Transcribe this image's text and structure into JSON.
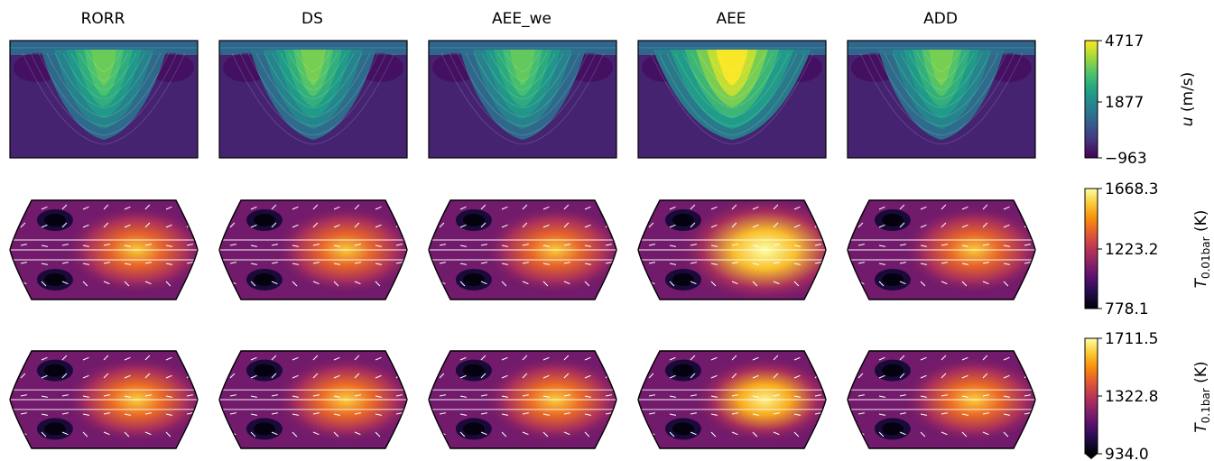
{
  "chart_data": {
    "type": "heatmap",
    "columns": [
      "RORR",
      "DS",
      "AEE_we",
      "AEE",
      "ADD"
    ],
    "rows": [
      {
        "key": "u",
        "projection": "latitude-pressure section",
        "colormap": "viridis",
        "colorbar_ticks": [
          "4717",
          "1877",
          "−963"
        ],
        "vmin": -963,
        "vmax": 4717,
        "label_italic": "u",
        "label_rest": " (m/s)",
        "panel_peak_relative": [
          0.72,
          0.74,
          0.7,
          1.0,
          0.74
        ]
      },
      {
        "key": "T_0.01bar",
        "projection": "map with wind vectors",
        "colormap": "inferno",
        "colorbar_ticks": [
          "1668.3",
          "1223.2",
          "778.1"
        ],
        "vmin": 778.1,
        "vmax": 1668.3,
        "label_T": "T",
        "label_sub": "0.01bar",
        "label_unit": " (K)",
        "panel_peak_relative": [
          0.72,
          0.72,
          0.72,
          1.0,
          0.72
        ]
      },
      {
        "key": "T_0.1bar",
        "projection": "map with wind vectors",
        "colormap": "inferno",
        "colorbar_ticks": [
          "1711.5",
          "1322.8",
          "934.0"
        ],
        "vmin": 934.0,
        "vmax": 1711.5,
        "label_T": "T",
        "label_sub": "0.1bar",
        "label_unit": " (K)",
        "panel_peak_relative": [
          0.74,
          0.74,
          0.74,
          0.94,
          0.74
        ]
      }
    ]
  }
}
